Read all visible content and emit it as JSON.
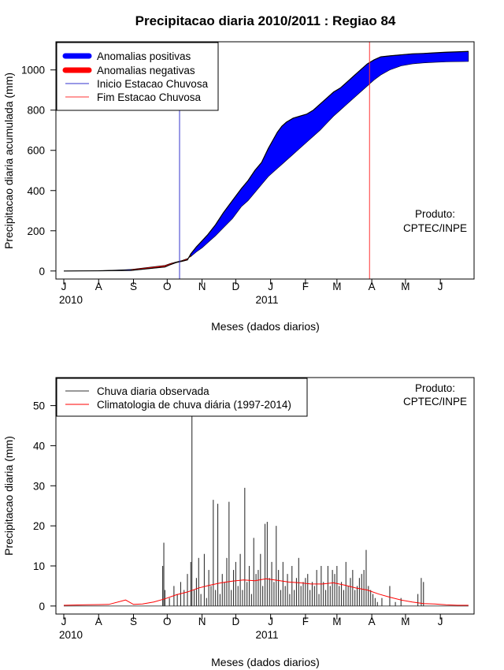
{
  "figure": {
    "title": "Precipitacao diaria 2010/2011 : Regiao 84",
    "months": [
      "J",
      "A",
      "S",
      "O",
      "N",
      "D",
      "J",
      "F",
      "M",
      "A",
      "M",
      "J"
    ],
    "year_labels": [
      "2010",
      "2011"
    ],
    "produto_line1": "Produto:",
    "produto_line2": "CPTEC/INPE",
    "colors": {
      "positive": "#0000ff",
      "negative": "#ff0000",
      "onset": "#3333cc",
      "end": "#ff3333",
      "observed": "#333333",
      "climatology": "#ff0000"
    }
  },
  "chart_data": [
    {
      "type": "area",
      "title": "Precipitacao diaria 2010/2011 : Regiao 84",
      "xlabel": "Meses (dados diarios)",
      "ylabel": "Precipitacao diaria acumulada (mm)",
      "x_unit": "day index (0 = 1 Jul 2010)",
      "xlim": [
        -7,
        365
      ],
      "ylim": [
        -40,
        1140
      ],
      "yticks": [
        0,
        200,
        400,
        600,
        800,
        1000
      ],
      "month_ticks": [
        0,
        31,
        62,
        92,
        123,
        153,
        184,
        215,
        243,
        274,
        304,
        335
      ],
      "legend": [
        "Anomalias positivas",
        "Anomalias negativas",
        "Inicio Estacao Chuvosa",
        "Fim Estacao Chuvosa"
      ],
      "legend_position": "top-left",
      "onset_day": 103,
      "end_day": 272,
      "observed_cumulative": {
        "x": [
          0,
          30,
          60,
          90,
          95,
          100,
          105,
          110,
          113,
          118,
          123,
          128,
          135,
          142,
          150,
          158,
          164,
          170,
          176,
          182,
          186,
          190,
          194,
          198,
          204,
          210,
          216,
          222,
          228,
          234,
          240,
          246,
          252,
          258,
          264,
          270,
          276,
          282,
          290,
          300,
          310,
          320,
          330,
          340,
          350,
          360
        ],
        "y": [
          0,
          1,
          3,
          20,
          32,
          42,
          48,
          55,
          85,
          120,
          150,
          180,
          230,
          290,
          350,
          410,
          450,
          500,
          540,
          610,
          650,
          690,
          720,
          740,
          760,
          770,
          780,
          800,
          830,
          860,
          890,
          910,
          940,
          970,
          1000,
          1030,
          1050,
          1065,
          1070,
          1075,
          1080,
          1082,
          1085,
          1088,
          1090,
          1092
        ]
      },
      "climatology_cumulative": {
        "x": [
          0,
          30,
          60,
          90,
          95,
          100,
          105,
          110,
          113,
          118,
          123,
          128,
          135,
          142,
          150,
          158,
          164,
          170,
          176,
          182,
          186,
          190,
          194,
          198,
          204,
          210,
          216,
          222,
          228,
          234,
          240,
          246,
          252,
          258,
          264,
          270,
          276,
          282,
          290,
          300,
          310,
          320,
          330,
          340,
          350,
          360
        ],
        "y": [
          0,
          1,
          8,
          28,
          38,
          45,
          52,
          62,
          72,
          95,
          115,
          140,
          175,
          215,
          260,
          320,
          350,
          390,
          430,
          470,
          490,
          510,
          530,
          550,
          580,
          610,
          640,
          670,
          700,
          735,
          770,
          800,
          830,
          860,
          890,
          920,
          950,
          975,
          1000,
          1020,
          1030,
          1035,
          1038,
          1040,
          1041,
          1042
        ]
      }
    },
    {
      "type": "bar",
      "xlabel": "Meses (dados diarios)",
      "ylabel": "Precipitacao diaria (mm)",
      "x_unit": "day index (0 = 1 Jul 2010)",
      "xlim": [
        -7,
        365
      ],
      "ylim": [
        -2,
        57
      ],
      "yticks": [
        0,
        10,
        20,
        30,
        40,
        50
      ],
      "legend": [
        "Chuva diaria observada",
        "Climatologia de chuva diária (1997-2014)"
      ],
      "legend_position": "top-left",
      "observed_daily": {
        "day": [
          88,
          89,
          90,
          94,
          98,
          101,
          104,
          107,
          110,
          113,
          114,
          116,
          118,
          120,
          122,
          125,
          127,
          129,
          131,
          133,
          135,
          137,
          139,
          141,
          143,
          145,
          147,
          149,
          151,
          153,
          155,
          157,
          159,
          161,
          163,
          165,
          167,
          169,
          171,
          173,
          175,
          177,
          179,
          181,
          183,
          185,
          187,
          189,
          191,
          193,
          195,
          197,
          199,
          201,
          203,
          205,
          207,
          209,
          211,
          213,
          215,
          217,
          219,
          221,
          223,
          225,
          227,
          229,
          231,
          233,
          235,
          237,
          239,
          241,
          243,
          245,
          247,
          249,
          251,
          253,
          255,
          257,
          259,
          261,
          263,
          265,
          267,
          269,
          271,
          273,
          275,
          277,
          279,
          283,
          290,
          295,
          300,
          315,
          318,
          320
        ],
        "value": [
          10,
          15.8,
          4,
          2,
          5,
          3,
          6,
          4,
          8,
          11,
          48,
          4,
          7,
          12,
          3,
          13,
          2,
          9,
          5,
          26.5,
          4,
          25.5,
          3,
          8,
          6,
          12,
          26,
          4,
          9,
          11,
          5,
          13,
          4,
          29.5,
          6,
          10,
          3,
          17,
          8,
          9,
          13,
          5,
          20.5,
          21,
          7,
          11,
          6,
          20,
          9,
          4,
          11,
          5,
          8,
          3,
          10,
          4,
          7,
          12,
          5,
          6,
          7,
          8,
          4,
          6,
          5,
          9,
          3,
          10,
          6,
          4,
          10,
          5,
          9,
          8,
          10,
          5,
          6,
          4,
          11,
          5,
          7,
          9,
          4,
          5,
          7,
          8,
          9,
          14,
          5,
          4,
          3,
          2,
          1,
          2,
          5,
          1,
          2,
          3,
          7,
          6
        ]
      },
      "climatology_daily": {
        "day": [
          0,
          20,
          40,
          55,
          62,
          70,
          80,
          90,
          100,
          110,
          120,
          130,
          140,
          150,
          160,
          170,
          180,
          190,
          200,
          210,
          220,
          230,
          240,
          250,
          260,
          270,
          280,
          290,
          300,
          310,
          320,
          330,
          340,
          350,
          360
        ],
        "value": [
          0.2,
          0.3,
          0.4,
          1.5,
          0.4,
          0.5,
          1.0,
          1.8,
          2.8,
          3.5,
          4.5,
          5.2,
          5.8,
          6.2,
          6.5,
          6.3,
          6.8,
          6.4,
          6.0,
          5.8,
          5.5,
          5.5,
          5.8,
          5.2,
          4.5,
          4.0,
          3.0,
          2.2,
          1.5,
          1.0,
          0.6,
          0.5,
          0.3,
          0.2,
          0.2
        ]
      }
    }
  ]
}
